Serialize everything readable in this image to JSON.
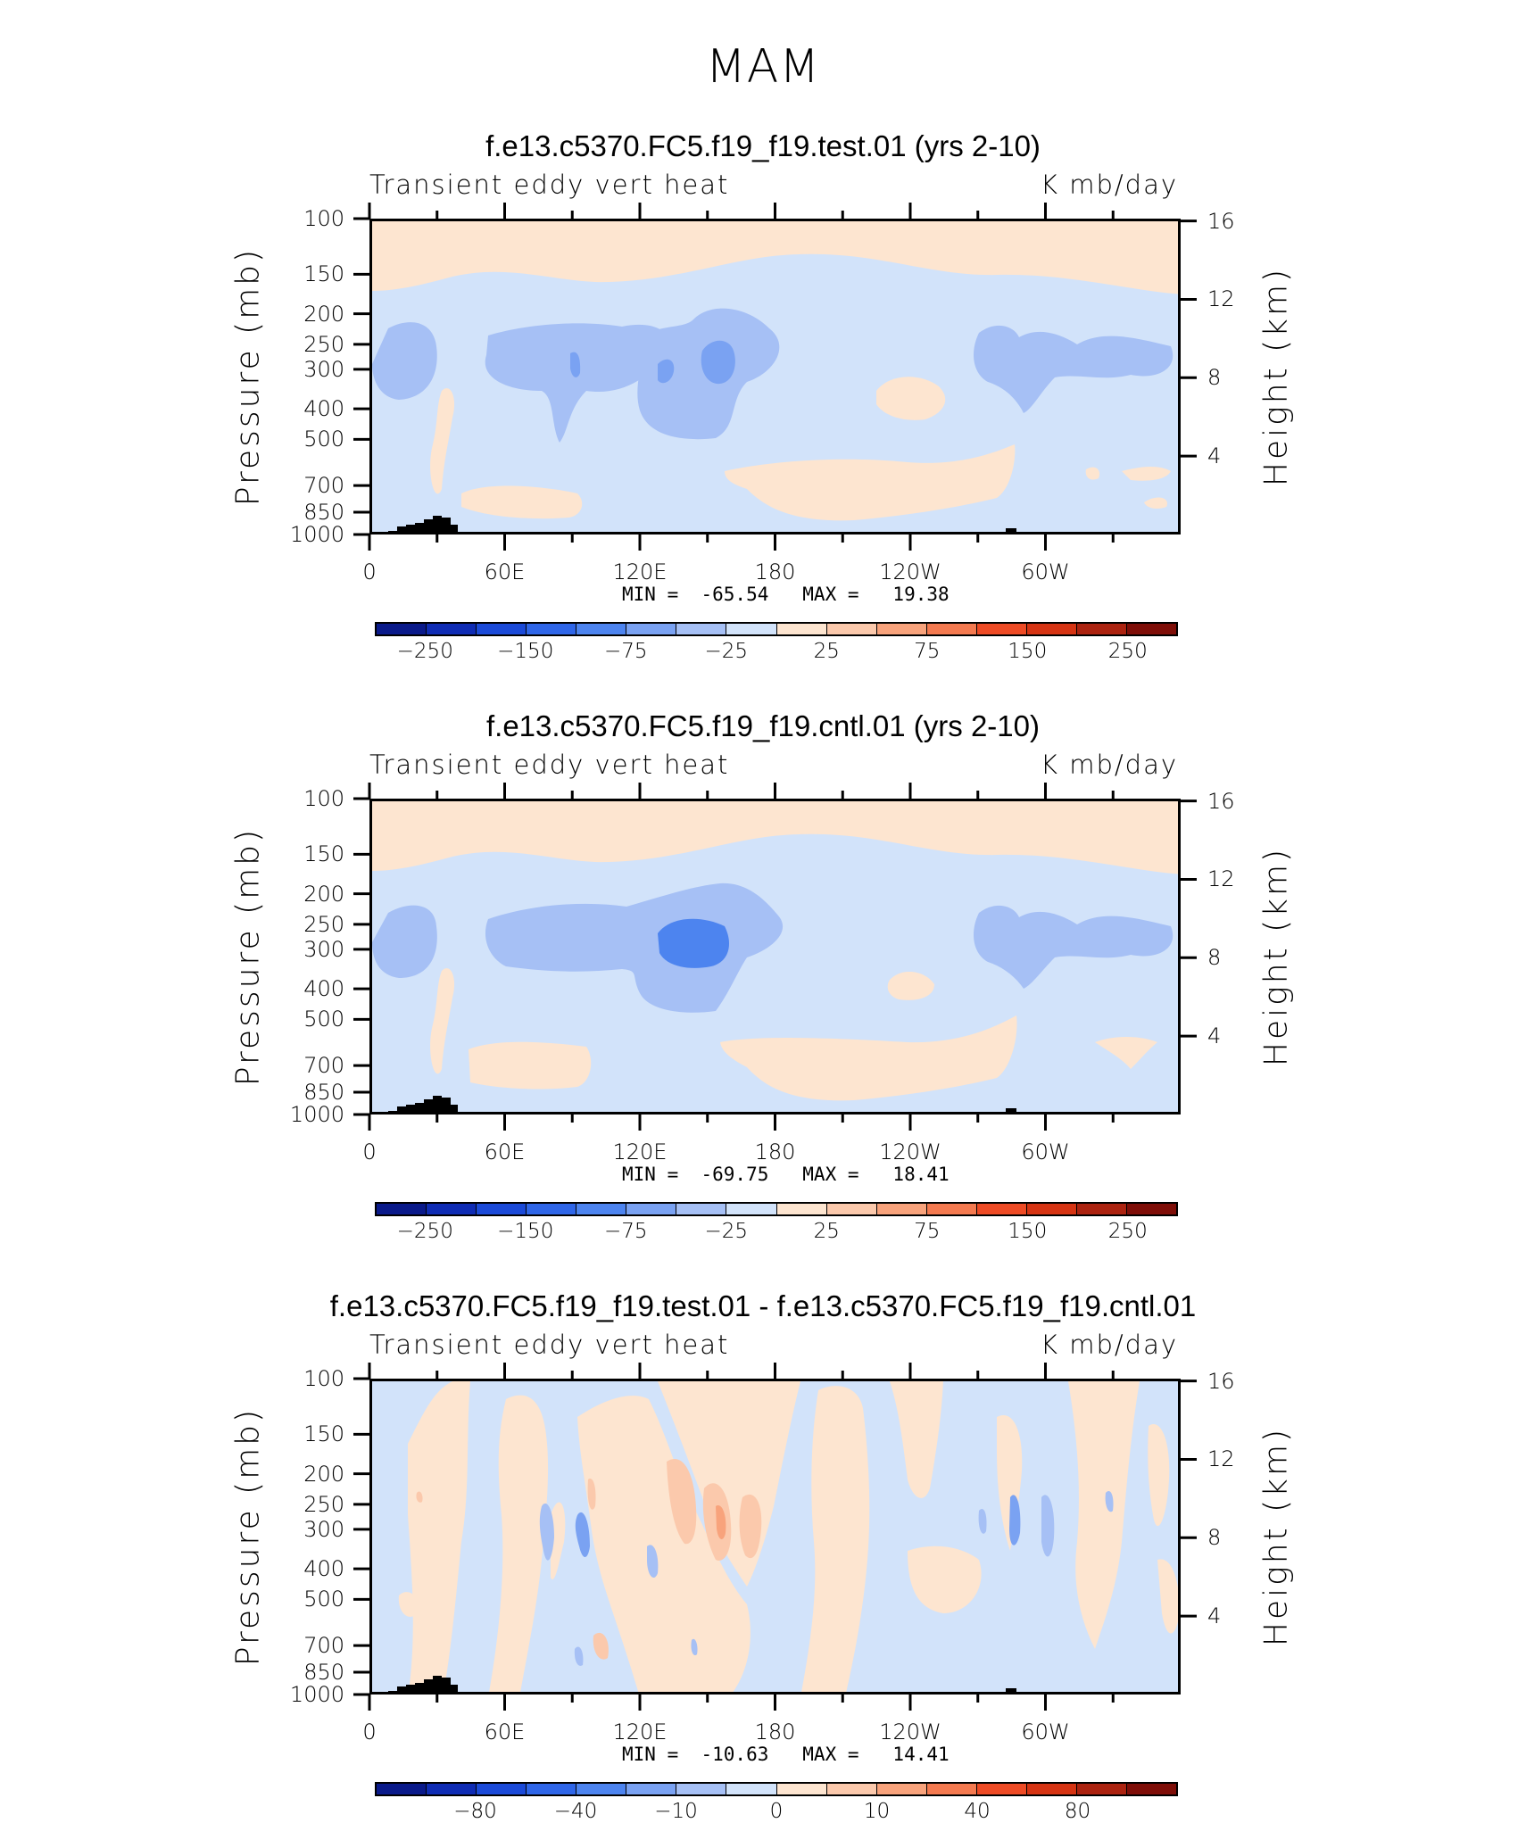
{
  "title": "MAM",
  "colors": {
    "palette": [
      "#0a1a8a",
      "#0f2cb4",
      "#1b4ad8",
      "#2f66e8",
      "#4d84ef",
      "#7aa2f2",
      "#a6c0f5",
      "#d2e3fa",
      "#fde5d0",
      "#fbc9ac",
      "#f8a37c",
      "#f47a50",
      "#ee4b25",
      "#d63413",
      "#ac2310",
      "#7f0e08"
    ],
    "neutral_above": "#fde5d0",
    "neutral_below": "#d2e3fa",
    "orography": "#000000"
  },
  "panels": [
    {
      "title": "f.e13.c5370.FC5.f19_f19.test.01 (yrs 2-10)",
      "left_label": "Transient eddy vert heat",
      "right_label": "K mb/day",
      "stats": "MIN =  -65.54   MAX =   19.38",
      "colorbar_labels": [
        "−250",
        "−150",
        "−75",
        "−25",
        "25",
        "75",
        "150",
        "250"
      ]
    },
    {
      "title": "f.e13.c5370.FC5.f19_f19.cntl.01 (yrs 2-10)",
      "left_label": "Transient eddy vert heat",
      "right_label": "K mb/day",
      "stats": "MIN =  -69.75   MAX =   18.41",
      "colorbar_labels": [
        "−250",
        "−150",
        "−75",
        "−25",
        "25",
        "75",
        "150",
        "250"
      ]
    },
    {
      "title": "f.e13.c5370.FC5.f19_f19.test.01 - f.e13.c5370.FC5.f19_f19.cntl.01",
      "left_label": "Transient eddy vert heat",
      "right_label": "K mb/day",
      "stats": "MIN =  -10.63   MAX =   14.41",
      "colorbar_labels": [
        "−80",
        "−40",
        "−10",
        "0",
        "10",
        "40",
        "80"
      ]
    }
  ],
  "chart_data": [
    {
      "type": "heatmap",
      "title": "f.e13.c5370.FC5.f19_f19.test.01 (yrs 2-10)",
      "variable": "Transient eddy vert heat",
      "units": "K mb/day",
      "xlabel": "",
      "ylabel": "Pressure (mb)",
      "y2label": "Height (km)",
      "x_ticks": [
        "0",
        "60E",
        "120E",
        "180",
        "120W",
        "60W"
      ],
      "y_ticks": [
        "100",
        "150",
        "200",
        "250",
        "300",
        "400",
        "500",
        "700",
        "850",
        "1000"
      ],
      "y2_ticks": [
        "16",
        "12",
        "8",
        "4"
      ],
      "contour_levels": [
        -250,
        -150,
        -75,
        -25,
        25,
        75,
        150,
        250
      ],
      "min": -65.54,
      "max": 19.38
    },
    {
      "type": "heatmap",
      "title": "f.e13.c5370.FC5.f19_f19.cntl.01 (yrs 2-10)",
      "variable": "Transient eddy vert heat",
      "units": "K mb/day",
      "xlabel": "",
      "ylabel": "Pressure (mb)",
      "y2label": "Height (km)",
      "x_ticks": [
        "0",
        "60E",
        "120E",
        "180",
        "120W",
        "60W"
      ],
      "y_ticks": [
        "100",
        "150",
        "200",
        "250",
        "300",
        "400",
        "500",
        "700",
        "850",
        "1000"
      ],
      "y2_ticks": [
        "16",
        "12",
        "8",
        "4"
      ],
      "contour_levels": [
        -250,
        -150,
        -75,
        -25,
        25,
        75,
        150,
        250
      ],
      "min": -69.75,
      "max": 18.41
    },
    {
      "type": "heatmap",
      "title": "f.e13.c5370.FC5.f19_f19.test.01 - f.e13.c5370.FC5.f19_f19.cntl.01",
      "variable": "Transient eddy vert heat",
      "units": "K mb/day",
      "xlabel": "",
      "ylabel": "Pressure (mb)",
      "y2label": "Height (km)",
      "x_ticks": [
        "0",
        "60E",
        "120E",
        "180",
        "120W",
        "60W"
      ],
      "y_ticks": [
        "100",
        "150",
        "200",
        "250",
        "300",
        "400",
        "500",
        "700",
        "850",
        "1000"
      ],
      "y2_ticks": [
        "16",
        "12",
        "8",
        "4"
      ],
      "contour_levels": [
        -80,
        -40,
        -10,
        0,
        10,
        40,
        80
      ],
      "min": -10.63,
      "max": 14.41
    }
  ],
  "axis_labels": {
    "pressure": "Pressure (mb)",
    "height": "Height (km)"
  }
}
